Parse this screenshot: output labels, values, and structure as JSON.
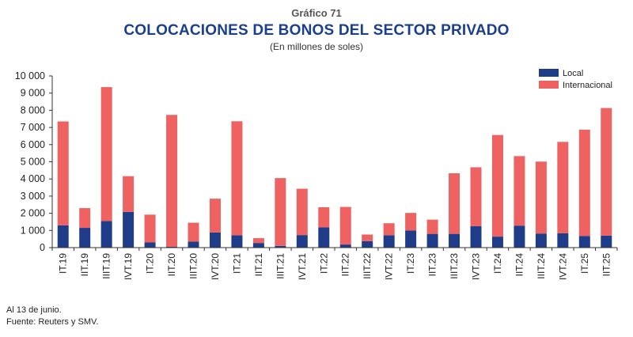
{
  "header": {
    "chart_number": "Gráfico 71",
    "title": "COLOCACIONES DE BONOS DEL SECTOR PRIVADO",
    "subtitle": "(En millones de soles)"
  },
  "footer": {
    "note": "Al 13 de junio.",
    "source": "Fuente: Reuters y SMV."
  },
  "colors": {
    "local": "#1f3c88",
    "internacional": "#ee6262"
  },
  "chart_data": {
    "type": "bar",
    "stacked": true,
    "title": "COLOCACIONES DE BONOS DEL SECTOR PRIVADO",
    "subtitle": "(En millones de soles)",
    "categories": [
      "IT.19",
      "IIT.19",
      "IIIT.19",
      "IVT.19",
      "IT.20",
      "IIT.20",
      "IIIT.20",
      "IVT.20",
      "IT.21",
      "IIT.21",
      "IIIT.21",
      "IVT.21",
      "IT.22",
      "IIT.22",
      "IIIT.22",
      "IVT.22",
      "IT.23",
      "IIT.23",
      "IIIT.23",
      "IVT.23",
      "IT.24",
      "IIT.24",
      "IIIT.24",
      "IVT.24",
      "IT.25",
      "IIT.25"
    ],
    "series": [
      {
        "name": "Local",
        "values": [
          1300,
          1150,
          1550,
          2080,
          300,
          50,
          350,
          880,
          720,
          270,
          100,
          730,
          1180,
          180,
          380,
          720,
          1000,
          800,
          800,
          1250,
          640,
          1280,
          820,
          830,
          680,
          700
        ]
      },
      {
        "name": "Internacional",
        "values": [
          6050,
          1150,
          7800,
          2080,
          1620,
          7680,
          1100,
          1970,
          6640,
          280,
          3950,
          2700,
          1170,
          2190,
          380,
          700,
          1020,
          830,
          3530,
          3430,
          5920,
          4050,
          4190,
          5330,
          6190,
          7430
        ]
      }
    ],
    "yticks": [
      "0",
      "1 000",
      "2 000",
      "3 000",
      "4 000",
      "5 000",
      "6 000",
      "7 000",
      "8 000",
      "9 000",
      "10 000"
    ],
    "ylim": [
      0,
      10000
    ],
    "legend_position": "top-right",
    "grid": false
  }
}
